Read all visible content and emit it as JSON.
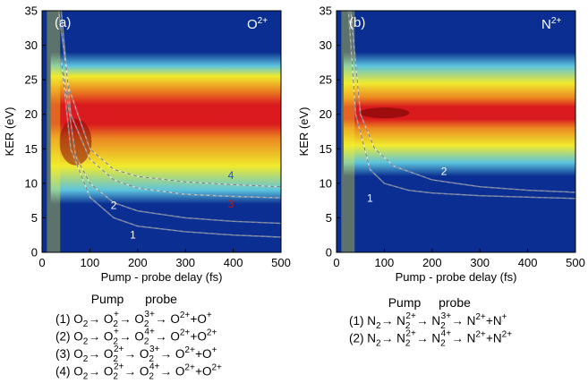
{
  "colors": {
    "background_low": "#0a2e91",
    "mid_cyan": "#5ec8e0",
    "yellow": "#f7f02a",
    "orange": "#f28a1e",
    "red": "#e01a1a",
    "dark_red": "#8a0a0a",
    "dash": "#7a7a7a"
  },
  "chart_data": [
    {
      "type": "heatmap",
      "panel": "(a)",
      "label": "O2+",
      "label_base": "O",
      "label_sup": "2+",
      "xlabel": "Pump - probe delay (fs)",
      "ylabel": "KER (eV)",
      "xlim": [
        0,
        500
      ],
      "ylim": [
        0,
        35
      ],
      "xticks": [
        "0",
        "100",
        "200",
        "300",
        "400",
        "500"
      ],
      "yticks": [
        "0",
        "5",
        "10",
        "15",
        "20",
        "25",
        "30",
        "35"
      ],
      "bands": [
        {
          "center": 20,
          "halfwidth": 3.5,
          "level": "red"
        },
        {
          "center": 19,
          "halfwidth": 6.5,
          "level": "yellow"
        },
        {
          "center": 18,
          "halfwidth": 9,
          "level": "cyan"
        }
      ],
      "curves": [
        {
          "label": "1",
          "label_color": "#ffffff",
          "points": [
            [
              40,
              28
            ],
            [
              60,
              15
            ],
            [
              100,
              8
            ],
            [
              150,
              5
            ],
            [
              200,
              3.8
            ],
            [
              300,
              3
            ],
            [
              400,
              2.5
            ],
            [
              500,
              2.2
            ]
          ]
        },
        {
          "label": "2",
          "label_color": "#ffffff",
          "points": [
            [
              45,
              26
            ],
            [
              70,
              14
            ],
            [
              100,
              10
            ],
            [
              150,
              7.2
            ],
            [
              200,
              6
            ],
            [
              300,
              5
            ],
            [
              400,
              4.5
            ],
            [
              500,
              4.2
            ]
          ]
        },
        {
          "label": "3",
          "label_color": "#d01010",
          "points": [
            [
              40,
              35
            ],
            [
              60,
              20
            ],
            [
              100,
              13.5
            ],
            [
              150,
              10.5
            ],
            [
              200,
              9.3
            ],
            [
              300,
              8.4
            ],
            [
              400,
              8.1
            ],
            [
              500,
              7.9
            ]
          ]
        },
        {
          "label": "4",
          "label_color": "#2050d0",
          "points": [
            [
              35,
              35
            ],
            [
              55,
              24
            ],
            [
              100,
              15
            ],
            [
              150,
              12
            ],
            [
              200,
              11
            ],
            [
              300,
              10.2
            ],
            [
              400,
              9.8
            ],
            [
              500,
              9.5
            ]
          ]
        }
      ]
    },
    {
      "type": "heatmap",
      "panel": "(b)",
      "label": "N2+",
      "label_base": "N",
      "label_sup": "2+",
      "xlabel": "Pump - probe delay (fs)",
      "ylabel": "KER (eV)",
      "xlim": [
        0,
        500
      ],
      "ylim": [
        0,
        35
      ],
      "xticks": [
        "0",
        "100",
        "200",
        "300",
        "400",
        "500"
      ],
      "yticks": [
        "0",
        "5",
        "10",
        "15",
        "20",
        "25",
        "30",
        "35"
      ],
      "bands": [
        {
          "center": 20.2,
          "halfwidth": 2.2,
          "level": "red"
        },
        {
          "center": 20,
          "halfwidth": 4.5,
          "level": "yellow"
        },
        {
          "center": 20,
          "halfwidth": 7,
          "level": "cyan"
        }
      ],
      "curves": [
        {
          "label": "1",
          "label_color": "#ffffff",
          "points": [
            [
              25,
              35
            ],
            [
              40,
              20
            ],
            [
              70,
              12
            ],
            [
              100,
              10
            ],
            [
              150,
              9
            ],
            [
              200,
              8.6
            ],
            [
              300,
              8.2
            ],
            [
              400,
              8
            ],
            [
              500,
              7.8
            ]
          ]
        },
        {
          "label": "2",
          "label_color": "#ffffff",
          "points": [
            [
              30,
              35
            ],
            [
              50,
              20
            ],
            [
              80,
              15
            ],
            [
              120,
              12.5
            ],
            [
              200,
              10.5
            ],
            [
              300,
              9.5
            ],
            [
              400,
              9
            ],
            [
              500,
              8.7
            ]
          ]
        }
      ]
    }
  ],
  "schemes": [
    {
      "header_pump": "Pump",
      "header_probe": "probe",
      "lines": [
        [
          "(1) O",
          "2",
          "",
          " → O",
          "2",
          "+",
          "  → O",
          "2",
          "3+",
          " → O",
          "",
          "2+",
          "+O",
          "",
          "+"
        ],
        [
          "(2) O",
          "2",
          "",
          " → O",
          "2",
          "+",
          "  → O",
          "2",
          "4+",
          " → O",
          "",
          "2+",
          "+O",
          "",
          "2+"
        ],
        [
          "(3) O",
          "2",
          "",
          " → O",
          "2",
          "2+",
          " → O",
          "2",
          "3+",
          " → O",
          "",
          "2+",
          "+O",
          "",
          "+"
        ],
        [
          "(4) O",
          "2",
          "",
          " → O",
          "2",
          "2+",
          " → O",
          "2",
          "4+",
          " → O",
          "",
          "2+",
          "+O",
          "",
          "2+"
        ]
      ]
    },
    {
      "header_pump": "Pump",
      "header_probe": "probe",
      "lines": [
        [
          "(1) N",
          "2",
          "",
          " → N",
          "2",
          "2+",
          " → N",
          "2",
          "3+",
          " → N",
          "",
          "2+",
          "+N",
          "",
          "+"
        ],
        [
          "(2) N",
          "2",
          "",
          " → N",
          "2",
          "2+",
          " → N",
          "2",
          "4+",
          " → N",
          "",
          "2+",
          "+N",
          "",
          "2+"
        ]
      ]
    }
  ]
}
